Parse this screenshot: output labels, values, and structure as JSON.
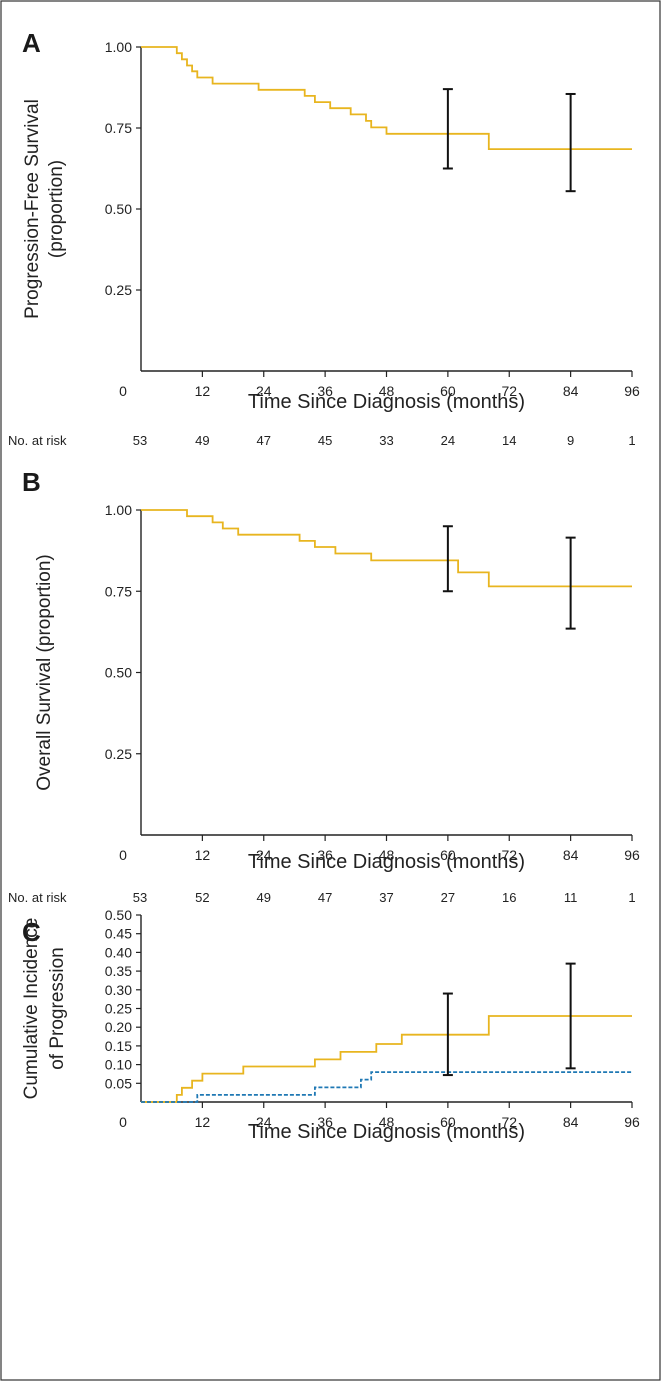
{
  "chart_data": [
    {
      "panel": "A",
      "type": "line",
      "step": true,
      "ylabel": [
        "Progression-Free Survival",
        "(proportion)"
      ],
      "xlabel": "Time Since Diagnosis (months)",
      "xlim": [
        0,
        96
      ],
      "ylim": [
        0.25,
        1.0
      ],
      "x_ticks": [
        0,
        12,
        24,
        36,
        48,
        60,
        72,
        84,
        96
      ],
      "y_ticks": [
        "1.00",
        "0.75",
        "0.50",
        "0.25"
      ],
      "y_tick_values": [
        1.0,
        0.75,
        0.5,
        0.25
      ],
      "series": [
        {
          "color": "#e8b51f",
          "style": "solid",
          "points": [
            [
              0,
              1.0
            ],
            [
              7,
              0.981
            ],
            [
              8,
              0.962
            ],
            [
              9,
              0.943
            ],
            [
              10,
              0.925
            ],
            [
              11,
              0.906
            ],
            [
              14,
              0.887
            ],
            [
              23,
              0.868
            ],
            [
              32,
              0.849
            ],
            [
              34,
              0.83
            ],
            [
              37,
              0.811
            ],
            [
              41,
              0.792
            ],
            [
              44,
              0.772
            ],
            [
              45,
              0.752
            ],
            [
              48,
              0.732
            ],
            [
              60,
              0.732
            ],
            [
              68,
              0.685
            ],
            [
              96,
              0.685
            ]
          ]
        }
      ],
      "error_bars": [
        {
          "x": 60,
          "low": 0.625,
          "high": 0.87
        },
        {
          "x": 84,
          "low": 0.555,
          "high": 0.855
        }
      ],
      "risk_label": "No. at risk",
      "risk_counts": [
        "53",
        "49",
        "47",
        "45",
        "33",
        "24",
        "14",
        "9",
        "1"
      ]
    },
    {
      "panel": "B",
      "type": "line",
      "step": true,
      "ylabel": [
        "Overall Survival (proportion)"
      ],
      "xlabel": "Time Since Diagnosis (months)",
      "xlim": [
        0,
        96
      ],
      "ylim": [
        0.25,
        1.0
      ],
      "x_ticks": [
        0,
        12,
        24,
        36,
        48,
        60,
        72,
        84,
        96
      ],
      "y_ticks": [
        "1.00",
        "0.75",
        "0.50",
        "0.25"
      ],
      "y_tick_values": [
        1.0,
        0.75,
        0.5,
        0.25
      ],
      "series": [
        {
          "color": "#e8b51f",
          "style": "solid",
          "points": [
            [
              0,
              1.0
            ],
            [
              9,
              0.981
            ],
            [
              14,
              0.962
            ],
            [
              16,
              0.943
            ],
            [
              19,
              0.924
            ],
            [
              31,
              0.905
            ],
            [
              34,
              0.886
            ],
            [
              38,
              0.866
            ],
            [
              45,
              0.845
            ],
            [
              60,
              0.845
            ],
            [
              62,
              0.808
            ],
            [
              68,
              0.765
            ],
            [
              96,
              0.765
            ]
          ]
        }
      ],
      "error_bars": [
        {
          "x": 60,
          "low": 0.75,
          "high": 0.95
        },
        {
          "x": 84,
          "low": 0.635,
          "high": 0.915
        }
      ],
      "risk_label": "No. at risk",
      "risk_counts": [
        "53",
        "52",
        "49",
        "47",
        "37",
        "27",
        "16",
        "11",
        "1"
      ]
    },
    {
      "panel": "C",
      "type": "line",
      "step": true,
      "ylabel": [
        "Cumulative Incidence",
        "of Progression"
      ],
      "xlabel": "Time Since Diagnosis (months)",
      "xlim": [
        0,
        96
      ],
      "ylim": [
        0.0,
        0.5
      ],
      "x_ticks": [
        0,
        12,
        24,
        36,
        48,
        60,
        72,
        84,
        96
      ],
      "y_ticks": [
        "0.50",
        "0.45",
        "0.40",
        "0.35",
        "0.30",
        "0.25",
        "0.20",
        "0.15",
        "0.10",
        "0.05"
      ],
      "y_tick_values": [
        0.5,
        0.45,
        0.4,
        0.35,
        0.3,
        0.25,
        0.2,
        0.15,
        0.1,
        0.05
      ],
      "series": [
        {
          "color": "#e8b51f",
          "style": "solid",
          "points": [
            [
              0,
              0.0
            ],
            [
              7,
              0.0
            ],
            [
              7,
              0.019
            ],
            [
              8,
              0.038
            ],
            [
              10,
              0.057
            ],
            [
              12,
              0.076
            ],
            [
              20,
              0.095
            ],
            [
              34,
              0.114
            ],
            [
              39,
              0.134
            ],
            [
              46,
              0.155
            ],
            [
              51,
              0.18
            ],
            [
              68,
              0.18
            ],
            [
              68,
              0.23
            ],
            [
              96,
              0.23
            ]
          ]
        },
        {
          "color": "#1f78b4",
          "style": "dashed",
          "points": [
            [
              0,
              0.0
            ],
            [
              11,
              0.0
            ],
            [
              11,
              0.019
            ],
            [
              34,
              0.019
            ],
            [
              34,
              0.039
            ],
            [
              43,
              0.039
            ],
            [
              43,
              0.06
            ],
            [
              45,
              0.06
            ],
            [
              45,
              0.08
            ],
            [
              96,
              0.08
            ]
          ]
        }
      ],
      "error_bars": [
        {
          "x": 60,
          "low": 0.072,
          "high": 0.29
        },
        {
          "x": 84,
          "low": 0.09,
          "high": 0.37
        }
      ]
    }
  ]
}
